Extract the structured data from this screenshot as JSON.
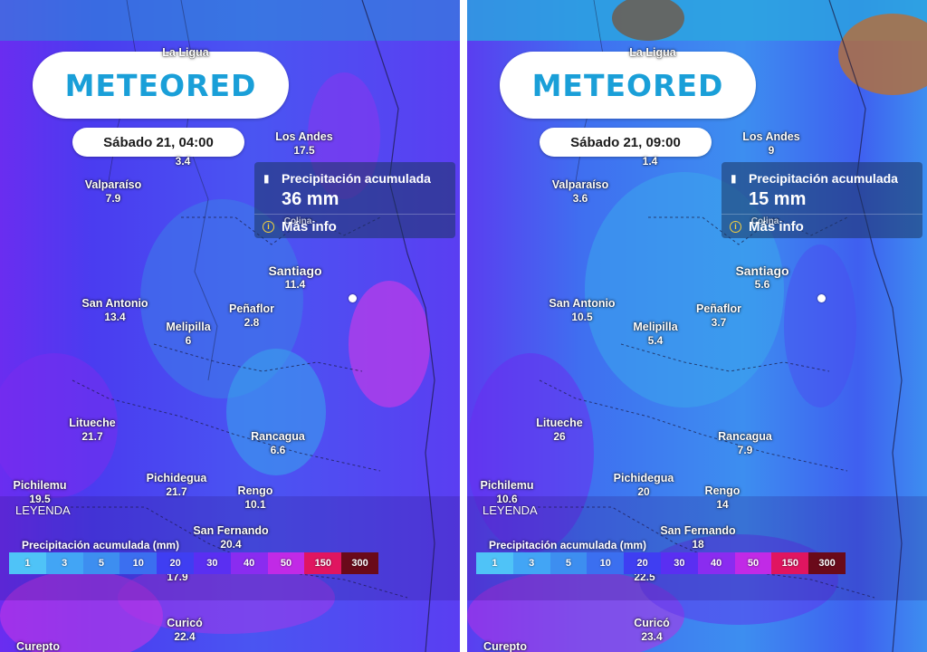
{
  "brand": "METEORED",
  "legend": {
    "title": "LEYENDA",
    "subtitle": "Precipitación acumulada (mm)",
    "steps": [
      {
        "label": "1",
        "color": "#4fc3f7"
      },
      {
        "label": "3",
        "color": "#42a5f5"
      },
      {
        "label": "5",
        "color": "#3d8ef0"
      },
      {
        "label": "10",
        "color": "#3b6ff0"
      },
      {
        "label": "20",
        "color": "#3f3ef2"
      },
      {
        "label": "30",
        "color": "#5a2ff2"
      },
      {
        "label": "40",
        "color": "#8a2cf0"
      },
      {
        "label": "50",
        "color": "#c12ae6"
      },
      {
        "label": "150",
        "color": "#e01560"
      },
      {
        "label": "300",
        "color": "#6a0a1a"
      }
    ]
  },
  "panels": [
    {
      "date": "Sábado 21, 04:00",
      "info": {
        "label": "Precipitación acumulada",
        "value": "36 mm",
        "link": "Más info",
        "overlay_text": "Colina"
      },
      "cities": [
        {
          "name": "La Ligua",
          "value": "3.4"
        },
        {
          "name": "Los Andes",
          "value": "17.5"
        },
        {
          "name": "Valparaíso",
          "value": "7.9"
        },
        {
          "name": "Santiago",
          "value": "11.4"
        },
        {
          "name": "San Antonio",
          "value": "13.4"
        },
        {
          "name": "Peñaflor",
          "value": "2.8"
        },
        {
          "name": "Melipilla",
          "value": "6"
        },
        {
          "name": "Litueche",
          "value": "21.7"
        },
        {
          "name": "Rancagua",
          "value": "6.6"
        },
        {
          "name": "Pichilemu",
          "value": "19.5"
        },
        {
          "name": "Pichidegua",
          "value": "21.7"
        },
        {
          "name": "Rengo",
          "value": "10.1"
        },
        {
          "name": "San Fernando",
          "value": "20.4"
        },
        {
          "name": "",
          "value": "17.9"
        },
        {
          "name": "Curicó",
          "value": "22.4"
        },
        {
          "name": "Curepto",
          "value": ""
        }
      ]
    },
    {
      "date": "Sábado 21, 09:00",
      "info": {
        "label": "Precipitación acumulada",
        "value": "15 mm",
        "link": "Más info",
        "overlay_text": "Colina"
      },
      "cities": [
        {
          "name": "La Ligua",
          "value": "1.4"
        },
        {
          "name": "Los Andes",
          "value": "9"
        },
        {
          "name": "Valparaíso",
          "value": "3.6"
        },
        {
          "name": "Santiago",
          "value": "5.6"
        },
        {
          "name": "San Antonio",
          "value": "10.5"
        },
        {
          "name": "Peñaflor",
          "value": "3.7"
        },
        {
          "name": "Melipilla",
          "value": "5.4"
        },
        {
          "name": "Litueche",
          "value": "26"
        },
        {
          "name": "Rancagua",
          "value": "7.9"
        },
        {
          "name": "Pichilemu",
          "value": "10.6"
        },
        {
          "name": "Pichidegua",
          "value": "20"
        },
        {
          "name": "Rengo",
          "value": "14"
        },
        {
          "name": "San Fernando",
          "value": "18"
        },
        {
          "name": "",
          "value": "22.5"
        },
        {
          "name": "Curicó",
          "value": "23.4"
        },
        {
          "name": "Curepto",
          "value": ""
        }
      ]
    }
  ]
}
